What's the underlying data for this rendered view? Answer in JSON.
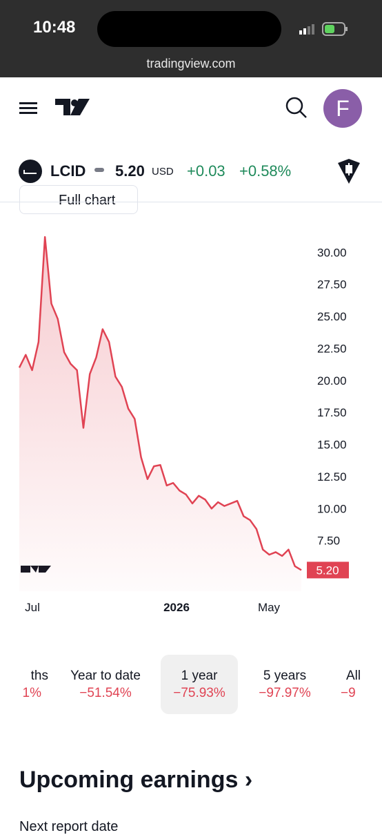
{
  "status_bar": {
    "time": "10:48"
  },
  "browser": {
    "url": "tradingview.com"
  },
  "header": {
    "avatar": "F"
  },
  "ticker": {
    "symbol": "LCID",
    "price": "5.20",
    "currency": "USD",
    "change": "+0.03",
    "change_percent": "+0.58%"
  },
  "full_chart_button": "Full chart",
  "chart_data": {
    "type": "area",
    "color": "#e04353",
    "values": [
      21,
      22,
      20.8,
      23,
      31.2,
      26,
      24.8,
      22.2,
      21.3,
      20.8,
      16.3,
      20.5,
      21.8,
      24,
      23,
      20.3,
      19.5,
      17.8,
      17,
      14,
      12.3,
      13.3,
      13.4,
      11.8,
      12,
      11.4,
      11.1,
      10.4,
      11,
      10.7,
      10,
      10.5,
      10.2,
      10.4,
      10.6,
      9.4,
      9.1,
      8.4,
      6.8,
      6.4,
      6.6,
      6.3,
      6.8,
      5.5,
      5.2
    ],
    "last_value_label": "5.20",
    "x_labels": [
      "Jul",
      "2026",
      "May"
    ],
    "ylim": [
      3.55,
      33.9
    ],
    "yticks": [
      {
        "value": 30,
        "label": "30.00"
      },
      {
        "value": 27.5,
        "label": "27.50"
      },
      {
        "value": 25,
        "label": "25.00"
      },
      {
        "value": 22.5,
        "label": "22.50"
      },
      {
        "value": 20,
        "label": "20.00"
      },
      {
        "value": 17.5,
        "label": "17.50"
      },
      {
        "value": 15,
        "label": "15.00"
      },
      {
        "value": 12.5,
        "label": "12.50"
      },
      {
        "value": 10,
        "label": "10.00"
      },
      {
        "value": 7.5,
        "label": "7.50"
      }
    ]
  },
  "periods": [
    {
      "label": "ths",
      "value": "1%"
    },
    {
      "label": "Year to date",
      "value": "−51.54%"
    },
    {
      "label": "1 year",
      "value": "−75.93%"
    },
    {
      "label": "5 years",
      "value": "−97.97%"
    },
    {
      "label": "All",
      "value": "−9"
    }
  ],
  "section": {
    "title": "Upcoming earnings",
    "subtitle": "Next report date"
  }
}
